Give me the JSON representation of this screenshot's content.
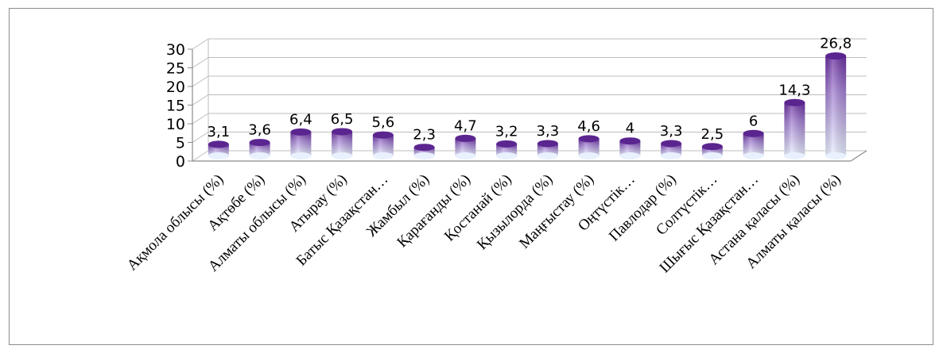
{
  "chart_data": {
    "type": "bar",
    "style": "3d-cylinder",
    "categories": [
      "Ақмола облысы  (%)",
      "Ақтөбе (%)",
      "Алматы облысы  (%)",
      "Атырау  (%)",
      "Батыс Қазақстан…",
      "Жамбыл  (%)",
      "Қарағанды  (%)",
      "Қостанай  (%)",
      "Қызылорда  (%)",
      "Маңғыстау  (%)",
      "Оңтүстік…",
      "Павлодар  (%)",
      "Солтүстік…",
      "Шығыс Қазақстан…",
      "Астана қаласы  (%)",
      "Алматы қаласы  (%)"
    ],
    "values": [
      3.1,
      3.6,
      6.4,
      6.5,
      5.6,
      2.3,
      4.7,
      3.2,
      3.3,
      4.6,
      4,
      3.3,
      2.5,
      6,
      14.3,
      26.8
    ],
    "data_labels": [
      "3,1",
      "3,6",
      "6,4",
      "6,5",
      "5,6",
      "2,3",
      "4,7",
      "3,2",
      "3,3",
      "4,6",
      "4",
      "3,3",
      "2,5",
      "6",
      "14,3",
      "26,8"
    ],
    "y_ticks": [
      "0",
      "5",
      "10",
      "15",
      "20",
      "25",
      "30"
    ],
    "ylim": [
      0,
      30
    ],
    "grid": true,
    "legend": "none",
    "colors": {
      "bar_top": "#6a2fa0",
      "bar_mid": "#a27fd0",
      "bar_base": "#e9f1ff",
      "grid": "#bdbdbd",
      "axis": "#8c8c8c"
    }
  }
}
